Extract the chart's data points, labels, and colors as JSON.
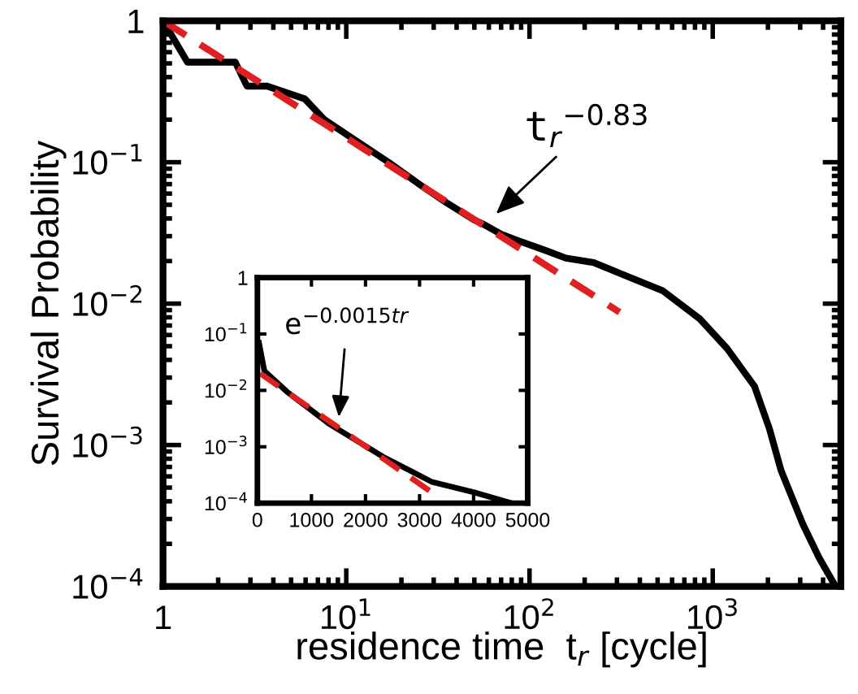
{
  "chart_data": [
    {
      "type": "line",
      "xlabel": "residence time  t$_{r}$ [cycle]",
      "ylabel": "Survival Probability",
      "log": "xy",
      "xlim": [
        1,
        5000
      ],
      "ylim": [
        0.0001,
        1
      ],
      "xticks": [
        {
          "value": 1,
          "label": "1"
        },
        {
          "value": 10,
          "label": "10$^{1}$"
        },
        {
          "value": 100,
          "label": "10$^{2}$"
        },
        {
          "value": 1000,
          "label": "10$^{3}$"
        }
      ],
      "yticks": [
        {
          "value": 0.0001,
          "label": "10$^{−4}$"
        },
        {
          "value": 0.001,
          "label": "10$^{−3}$"
        },
        {
          "value": 0.01,
          "label": "10$^{−2}$"
        },
        {
          "value": 0.1,
          "label": "10$^{−1}$"
        },
        {
          "value": 1,
          "label": "1"
        }
      ],
      "grid": false,
      "legend": false,
      "marker": "none",
      "series": [
        {
          "color": "#000000",
          "line_style": "solid",
          "x": [
            1,
            1.36,
            2.48,
            2.87,
            3.7,
            5.95,
            7.6,
            10.2,
            17,
            25,
            35,
            50,
            57,
            70,
            86,
            120,
            158,
            224,
            535,
            850,
            1200,
            1690,
            2040,
            2360,
            3100,
            3800,
            4680
          ],
          "values": [
            1,
            0.51,
            0.51,
            0.345,
            0.345,
            0.28,
            0.2,
            0.155,
            0.1,
            0.07,
            0.052,
            0.039,
            0.036,
            0.031,
            0.028,
            0.024,
            0.021,
            0.0195,
            0.0123,
            0.0078,
            0.0048,
            0.0026,
            0.0013,
            0.00066,
            0.000276,
            0.00016,
            0.0001
          ]
        },
        {
          "type": "line",
          "color": "#e02020",
          "line_style": "dashed",
          "x": [
            1,
            310
          ],
          "values": [
            1,
            0.0087
          ]
        }
      ],
      "annotations": [
        {
          "text": "t$_{r}$$^{−0.83}$",
          "x": 63,
          "y": 0.041
        }
      ]
    },
    {
      "type": "line",
      "log": "y",
      "xlim": [
        0,
        5000
      ],
      "ylim": [
        0.0001,
        1
      ],
      "xticks": [
        0,
        1000,
        2000,
        3000,
        4000,
        5000
      ],
      "yticks": [
        {
          "value": 0.0001,
          "label": "10$^{−4}$"
        },
        {
          "value": 0.001,
          "label": "10$^{−3}$"
        },
        {
          "value": 0.01,
          "label": "10$^{−2}$"
        },
        {
          "value": 0.1,
          "label": "10$^{−1}$"
        },
        {
          "value": 1,
          "label": "1"
        }
      ],
      "grid": false,
      "legend": false,
      "marker": "none",
      "series": [
        {
          "color": "#000000",
          "line_style": "solid",
          "x": [
            30,
            130,
            545,
            1340,
            2330,
            3220,
            4010,
            4700
          ],
          "values": [
            0.069,
            0.022,
            0.0095,
            0.0025,
            0.00066,
            0.00024,
            0.000155,
            0.0001
          ]
        },
        {
          "color": "#e02020",
          "line_style": "dashed",
          "x": [
            50,
            3320
          ],
          "values": [
            0.02,
            0.000135
          ]
        }
      ],
      "annotations": [
        {
          "text": "e$^{−0.0015tr}$",
          "x": 1500,
          "y": 0.0028
        }
      ]
    }
  ]
}
